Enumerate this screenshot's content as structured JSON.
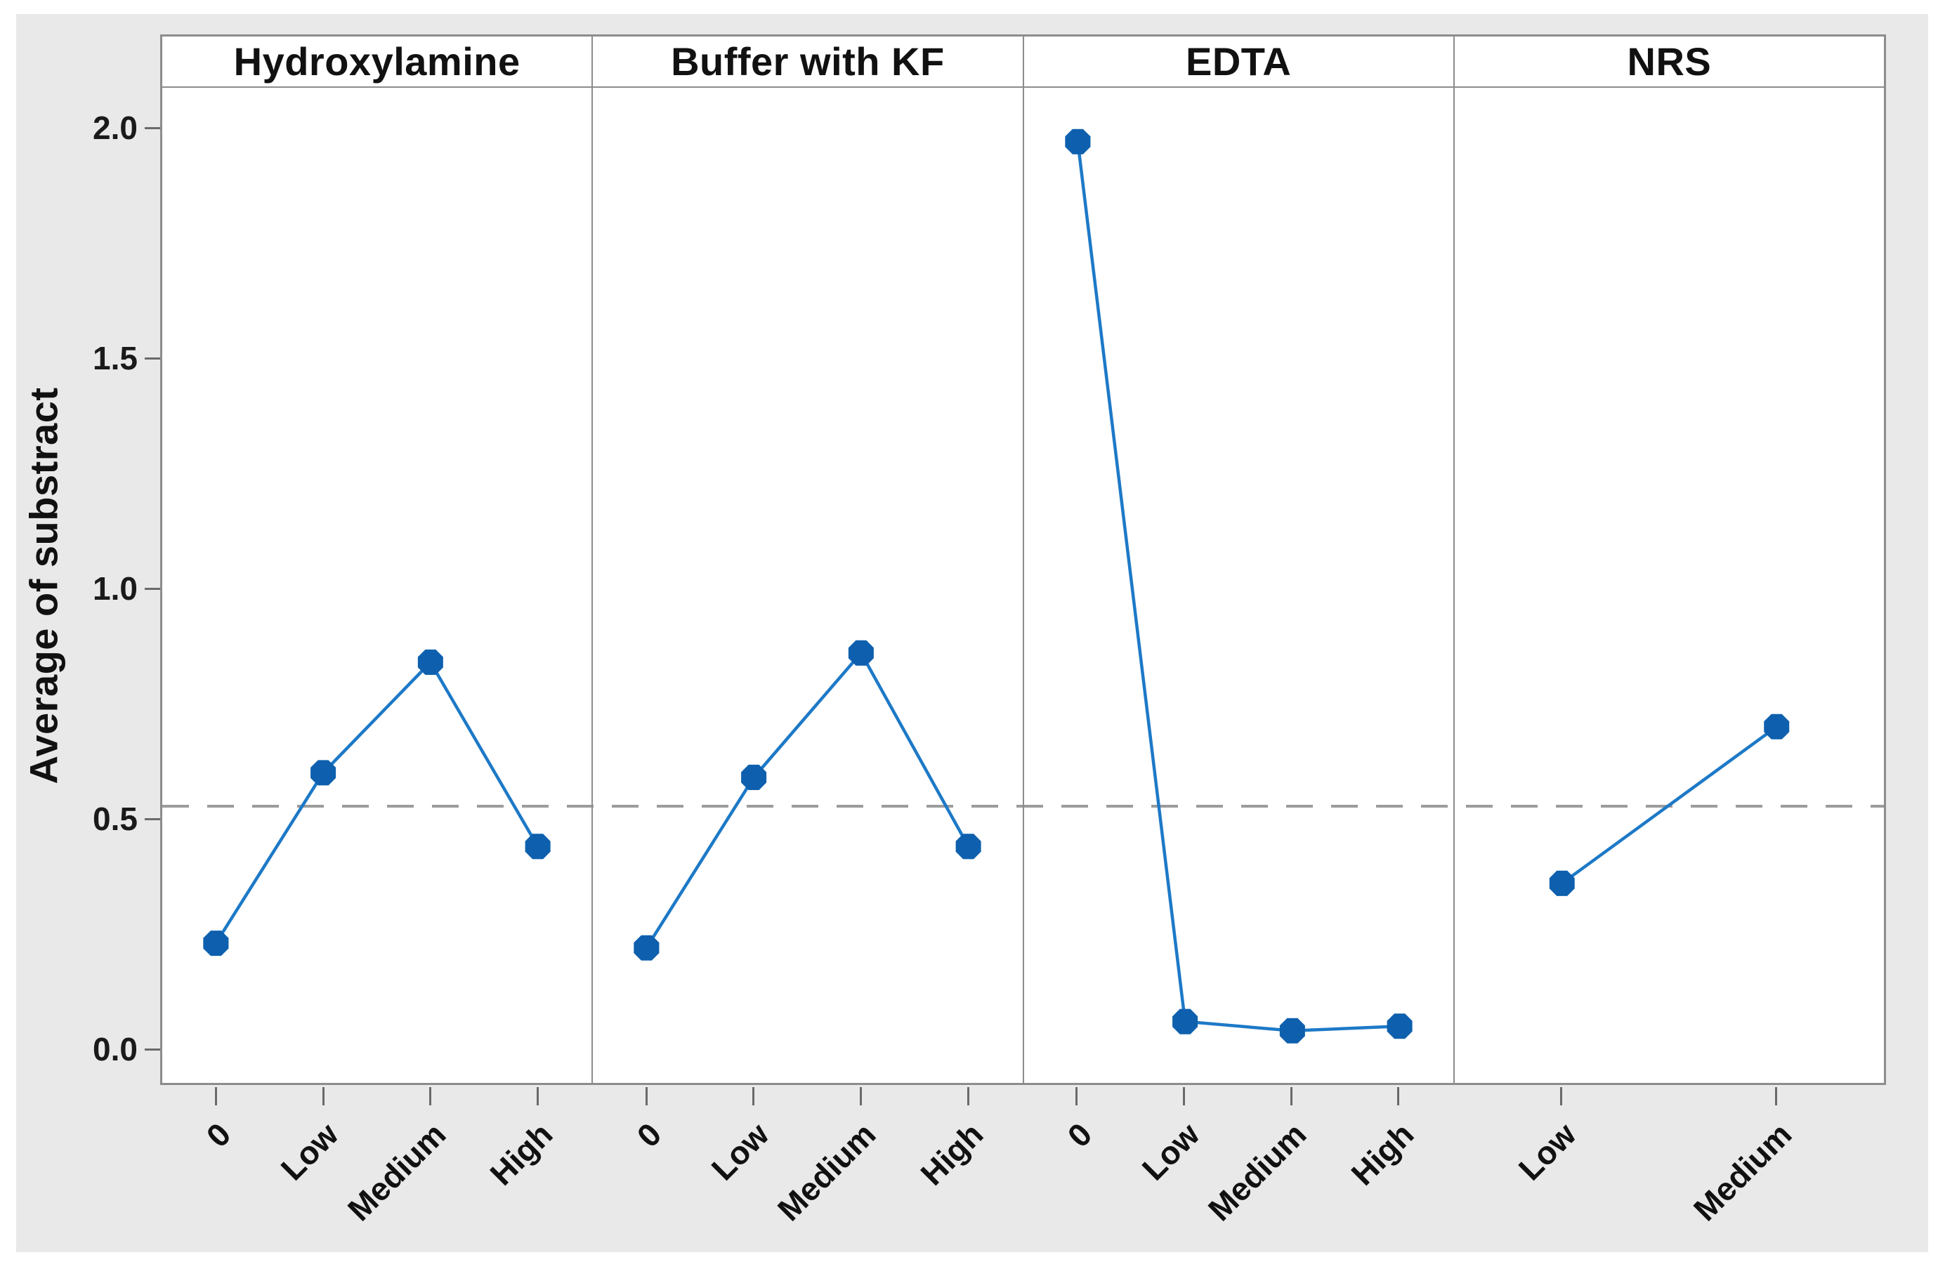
{
  "chart_data": {
    "type": "line",
    "title": "",
    "ylabel": "Average of substract",
    "xlabel": "",
    "ylim": [
      -0.07,
      2.09
    ],
    "yticks": [
      2.0,
      1.5,
      1.0,
      0.5,
      0.0
    ],
    "ytick_labels": [
      "2.0",
      "1.5",
      "1.0",
      "0.5",
      "0.0"
    ],
    "reference_line": 0.53,
    "grid": false,
    "legend": false,
    "marker_shape": "filled-octagon",
    "panels": [
      {
        "title": "Hydroxylamine",
        "categories": [
          "0",
          "Low",
          "Medium",
          "High"
        ],
        "values": [
          0.23,
          0.6,
          0.84,
          0.44
        ]
      },
      {
        "title": "Buffer with KF",
        "categories": [
          "0",
          "Low",
          "Medium",
          "High"
        ],
        "values": [
          0.22,
          0.59,
          0.86,
          0.44
        ]
      },
      {
        "title": "EDTA",
        "categories": [
          "0",
          "Low",
          "Medium",
          "High"
        ],
        "values": [
          1.97,
          0.06,
          0.04,
          0.05
        ]
      },
      {
        "title": "NRS",
        "categories": [
          "Low",
          "Medium"
        ],
        "values": [
          0.36,
          0.7
        ]
      }
    ],
    "colors": {
      "marker": "#0e60ae",
      "line": "#1d79c7",
      "reference_line": "#9c9c9c",
      "frame": "#8c8c8c",
      "tick": "#6a6a6a",
      "text": "#111111",
      "panel_background": "#ffffff",
      "figure_background": "#e9e9e9"
    }
  }
}
